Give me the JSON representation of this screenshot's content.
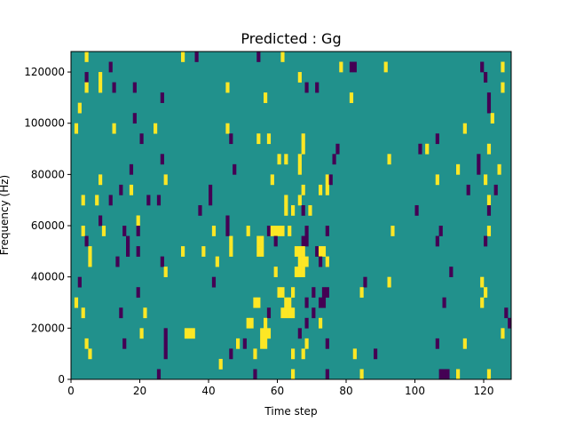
{
  "chart_data": {
    "type": "heatmap",
    "title": "Predicted : Gg",
    "xlabel": "Time step",
    "ylabel": "Frequency (Hz)",
    "xlim": [
      0,
      128
    ],
    "ylim": [
      0,
      128000
    ],
    "xticks": [
      "0",
      "20",
      "40",
      "60",
      "80",
      "100",
      "120"
    ],
    "xtick_values": [
      0,
      20,
      40,
      60,
      80,
      100,
      120
    ],
    "yticks": [
      "0",
      "20000",
      "40000",
      "60000",
      "80000",
      "100000",
      "120000"
    ],
    "ytick_values": [
      0,
      20000,
      40000,
      60000,
      80000,
      100000,
      120000
    ],
    "n_cols": 128,
    "n_rows": 32,
    "colors": {
      ".": "#21918c",
      "y": "#fde725",
      "p": "#440154"
    },
    "legend_codes": {
      ".": "background value",
      "y": "high value",
      "p": "low value"
    },
    "grid_rows_top_to_bottom": [
      "....y...........................y...p.................p......y.................................................................",
      "...........p..................................................................y..pp........y...........................p.....y",
      "....p...y.........................................................y.....................................................p.......",
      "....y...y...p.....p..........................y......................p..p.....................................................y",
      "..........................p.............................y........................y.......................................p.....",
      "..y......................................................................................................................p.....",
      "..................p.......................................................................................................y.....",
      ".y..........y...........y....................y....................................................................y.............",
      "....................p.........................p.......y..y.........y......................................p.....................",
      "...................................................................y.........p.......................p.y.................y.......",
      "..........................p.................................y.y...y.........p...............y.........................p.........",
      ".................p.............................p..................y.............................................y.....p.....y...",
      "........y..................y..............................y...............yp..............................y.............y........",
      "..............p..y......................p..........................y....y.y........................................p.......p......",
      "...y...y...p..........p..p..............p.....................y...y......................................................y.......",
      ".....................................p........................y.y..p.y..............................p....................p......y",
      "........p..........y.........................p....................................................................................",
      "...y.....y.....p...p.....................y...p.....y.....pyyyy.y....p.....p..................y.............p.............y........",
      "....p...........p.............................y.......yy...p.......pp.....................................p.............p.........",
      ".....y..........p..p............y.....y.......y.......yy.........yyy...pyy......................................................y",
      ".....y.......p............p...............y.......................yyy...p.y......................................................",
      "...........................y...............................y.....yyy..........................................p.................",
      "..p......................................p...........................................p......y..........................y.........",
      "...................p........................................yy..y.....p..pp.........y...................................y........",
      ".y...................................................yy.......yy....p...pp..................................p..........y.........",
      "...y..........p......y...................................p...yyyy.....p.......................................................p.",
      "...................................................yy...y...........p...y......................................................p",
      "....................y......p.....yyy...................yyy........p..........................................................y...",
      "....y..........p...........p....................y.p....yy...........y.....p...............................p.......y..............",
      ".....y.....................p..................p......y..........y..y..............y.....p.....................................",
      "...........................................y....................................................................................",
      ".........................p...........................p..........y.........p.........y......................ppp..y........y......y"
    ]
  }
}
